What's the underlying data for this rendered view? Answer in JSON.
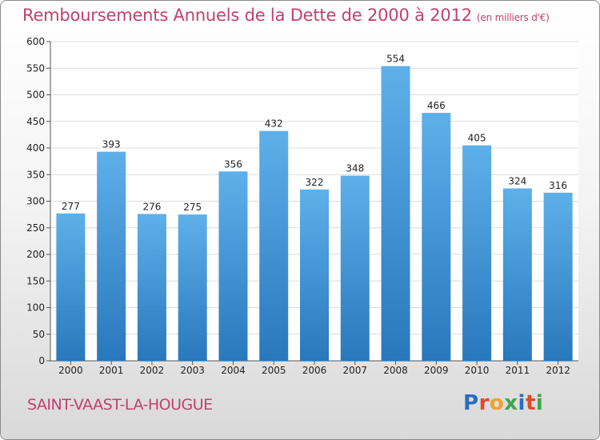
{
  "title": "Remboursements Annuels de la Dette de 2000 à 2012",
  "subtitle": "(en milliers d'€)",
  "city": "SAINT-VAAST-LA-HOUGUE",
  "logo": [
    "P",
    "r",
    "o",
    "x",
    "i",
    "t",
    "i"
  ],
  "logo_colors": [
    "#2a6cc0",
    "#e24a2a",
    "#f2a12a",
    "#3ea64a",
    "#2a6cc0",
    "#e24a2a",
    "#3ea64a"
  ],
  "colors": {
    "bar_light": "#5eb0ea",
    "bar_dark": "#2878bc",
    "title": "#c2406e"
  },
  "chart_data": {
    "type": "bar",
    "categories": [
      "2000",
      "2001",
      "2002",
      "2003",
      "2004",
      "2005",
      "2006",
      "2007",
      "2008",
      "2009",
      "2010",
      "2011",
      "2012"
    ],
    "values": [
      277,
      393,
      276,
      275,
      356,
      432,
      322,
      348,
      554,
      466,
      405,
      324,
      316
    ],
    "title": "Remboursements Annuels de la Dette de 2000 à 2012",
    "xlabel": "",
    "ylabel": "",
    "ylim": [
      0,
      600
    ],
    "yticks": [
      0,
      50,
      100,
      150,
      200,
      250,
      300,
      350,
      400,
      450,
      500,
      550,
      600
    ],
    "grid": true
  }
}
